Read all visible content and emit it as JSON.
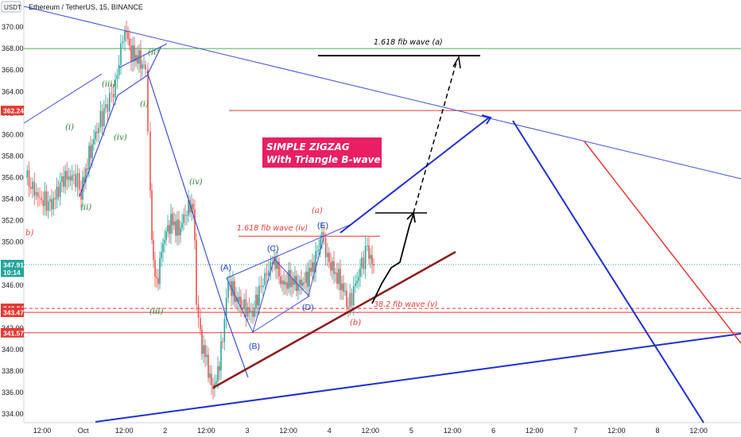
{
  "header": {
    "currency_badge": "USDT",
    "symbol_title": "Ethereum / TetherUS, 15, BINANCE"
  },
  "chart_data": {
    "type": "candlestick",
    "title": "Ethereum / TetherUS, 15, BINANCE",
    "ylim": [
      333.5,
      372
    ],
    "y_ticks": [
      "370.00",
      "368.00",
      "366.00",
      "364.00",
      "362.00",
      "360.00",
      "358.00",
      "356.00",
      "354.00",
      "352.00",
      "350.00",
      "348.00",
      "346.00",
      "342.00",
      "340.00",
      "338.00",
      "336.00",
      "334.00"
    ],
    "x_ticks": [
      "12:00",
      "Oct",
      "12:00",
      "2",
      "12:00",
      "3",
      "12:00",
      "4",
      "12:00",
      "5",
      "12:00",
      "6",
      "12:00",
      "7",
      "12:00",
      "8",
      "12:00"
    ],
    "price_badges": [
      {
        "label": "362.24",
        "value": 362.24,
        "color": "#e53935"
      },
      {
        "label": "347.91",
        "value": 347.91,
        "color": "#26a69a"
      },
      {
        "label": "10:14",
        "value": 347.2,
        "color": "#26a69a"
      },
      {
        "label": "343.84",
        "value": 343.84,
        "color": "#e53935"
      },
      {
        "label": "343.47",
        "value": 343.47,
        "color": "#e53935"
      },
      {
        "label": "341.57",
        "value": 341.57,
        "color": "#e53935"
      }
    ],
    "horizontal_levels": [
      {
        "value": 368.0,
        "color": "#4caf50"
      },
      {
        "value": 362.24,
        "color": "#e53935"
      },
      {
        "value": 350.55,
        "color": "#e53935"
      },
      {
        "value": 347.91,
        "color": "#26a69a",
        "style": "dotted"
      },
      {
        "value": 343.84,
        "color": "#e53935",
        "style": "dashed"
      },
      {
        "value": 343.47,
        "color": "#e53935"
      },
      {
        "value": 341.57,
        "color": "#e53935"
      }
    ],
    "annotations": {
      "title_box_line1": "SIMPLE ZIGZAG",
      "title_box_line2": "With Triangle B-wave",
      "fib_a": "1.618 fib wave (a)",
      "fib_iv": "1.618 fib wave (iv)",
      "fib_v": "38.2 fib wave (v)",
      "wave_a": "(a)",
      "wave_b": "(b)",
      "wave_i_1": "(i)",
      "wave_i_2": "(i)",
      "wave_ii_1": "(ii)",
      "wave_ii_2": "(ii)",
      "wave_iii_1": "(iii)",
      "wave_iii_2": "(iii)",
      "wave_iv_1": "(iv)",
      "wave_iv_2": "(iv)",
      "tri_A": "(A)",
      "tri_B": "(B)",
      "tri_C": "(C)",
      "tri_D": "(D)",
      "tri_E": "(E)",
      "edge_b": "b)"
    }
  }
}
